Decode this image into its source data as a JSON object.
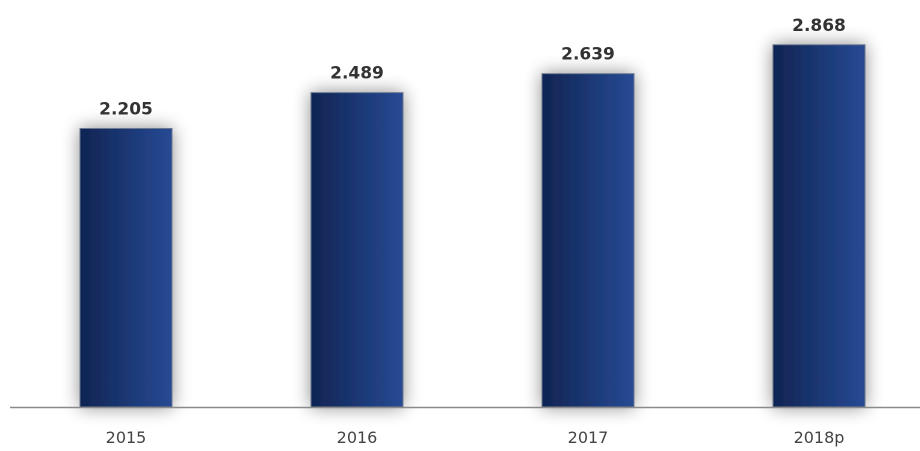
{
  "chart_data": {
    "type": "bar",
    "categories": [
      "2015",
      "2016",
      "2017",
      "2018p"
    ],
    "values": [
      2205,
      2489,
      2639,
      2868
    ],
    "data_labels": [
      "2.205",
      "2.489",
      "2.639",
      "2.868"
    ],
    "title": "",
    "xlabel": "",
    "ylabel": "",
    "ylim": [
      0,
      3064
    ],
    "grid": false,
    "legend": "none"
  },
  "colors": {
    "bar_dark": "#0f2452",
    "bar_light": "#274a94",
    "axis": "#8a8a8a",
    "label": "#333333"
  }
}
